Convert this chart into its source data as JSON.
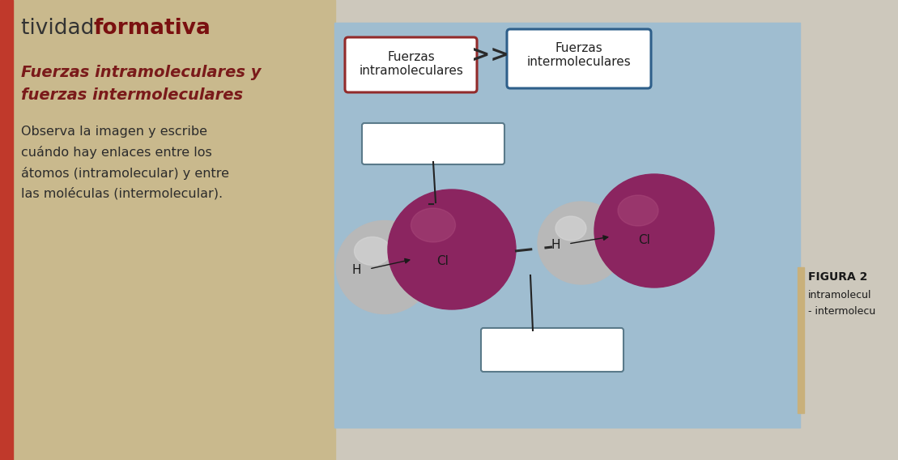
{
  "title_light": "tividad ",
  "title_bold": "formativa",
  "subtitle_bold1": "Fuerzas intramoleculares y",
  "subtitle_bold2": "fuerzas intermoleculares",
  "body_text": "Observa la imagen y escribe\ncuándo hay enlaces entre los\nátomos (intramolecular) y entre\nlas moléculas (intermolecular).",
  "label_intra": "Fuerzas\nintramoleculares",
  "label_inter": "Fuerzas\nintermoleculares",
  "figura_label": "FIGURA 2",
  "intra_label": "intramolecul",
  "inter_label": "- intermolecu",
  "bg_left_color": "#c9b98d",
  "bg_right_color": "#9fbdd0",
  "bg_outer_color": "#cdc8bc",
  "red_bar_color": "#c0392b",
  "box_intra_border": "#922b2b",
  "box_inter_border": "#2e5f8a",
  "title_color_light": "#333333",
  "title_color_bold": "#7a1010",
  "subtitle_color": "#7a1a1a",
  "body_color": "#2c2c2c",
  "sphere_H_color": "#b8b8b8",
  "sphere_Cl_color": "#8b2560",
  "sphere_Cl_edge": "#6b1540",
  "figura_color": "#1a1a1a",
  "H_label_color": "#1a1a1a",
  "Cl_label_color": "#1a1a1a",
  "tan_strip_color": "#c9b07a"
}
